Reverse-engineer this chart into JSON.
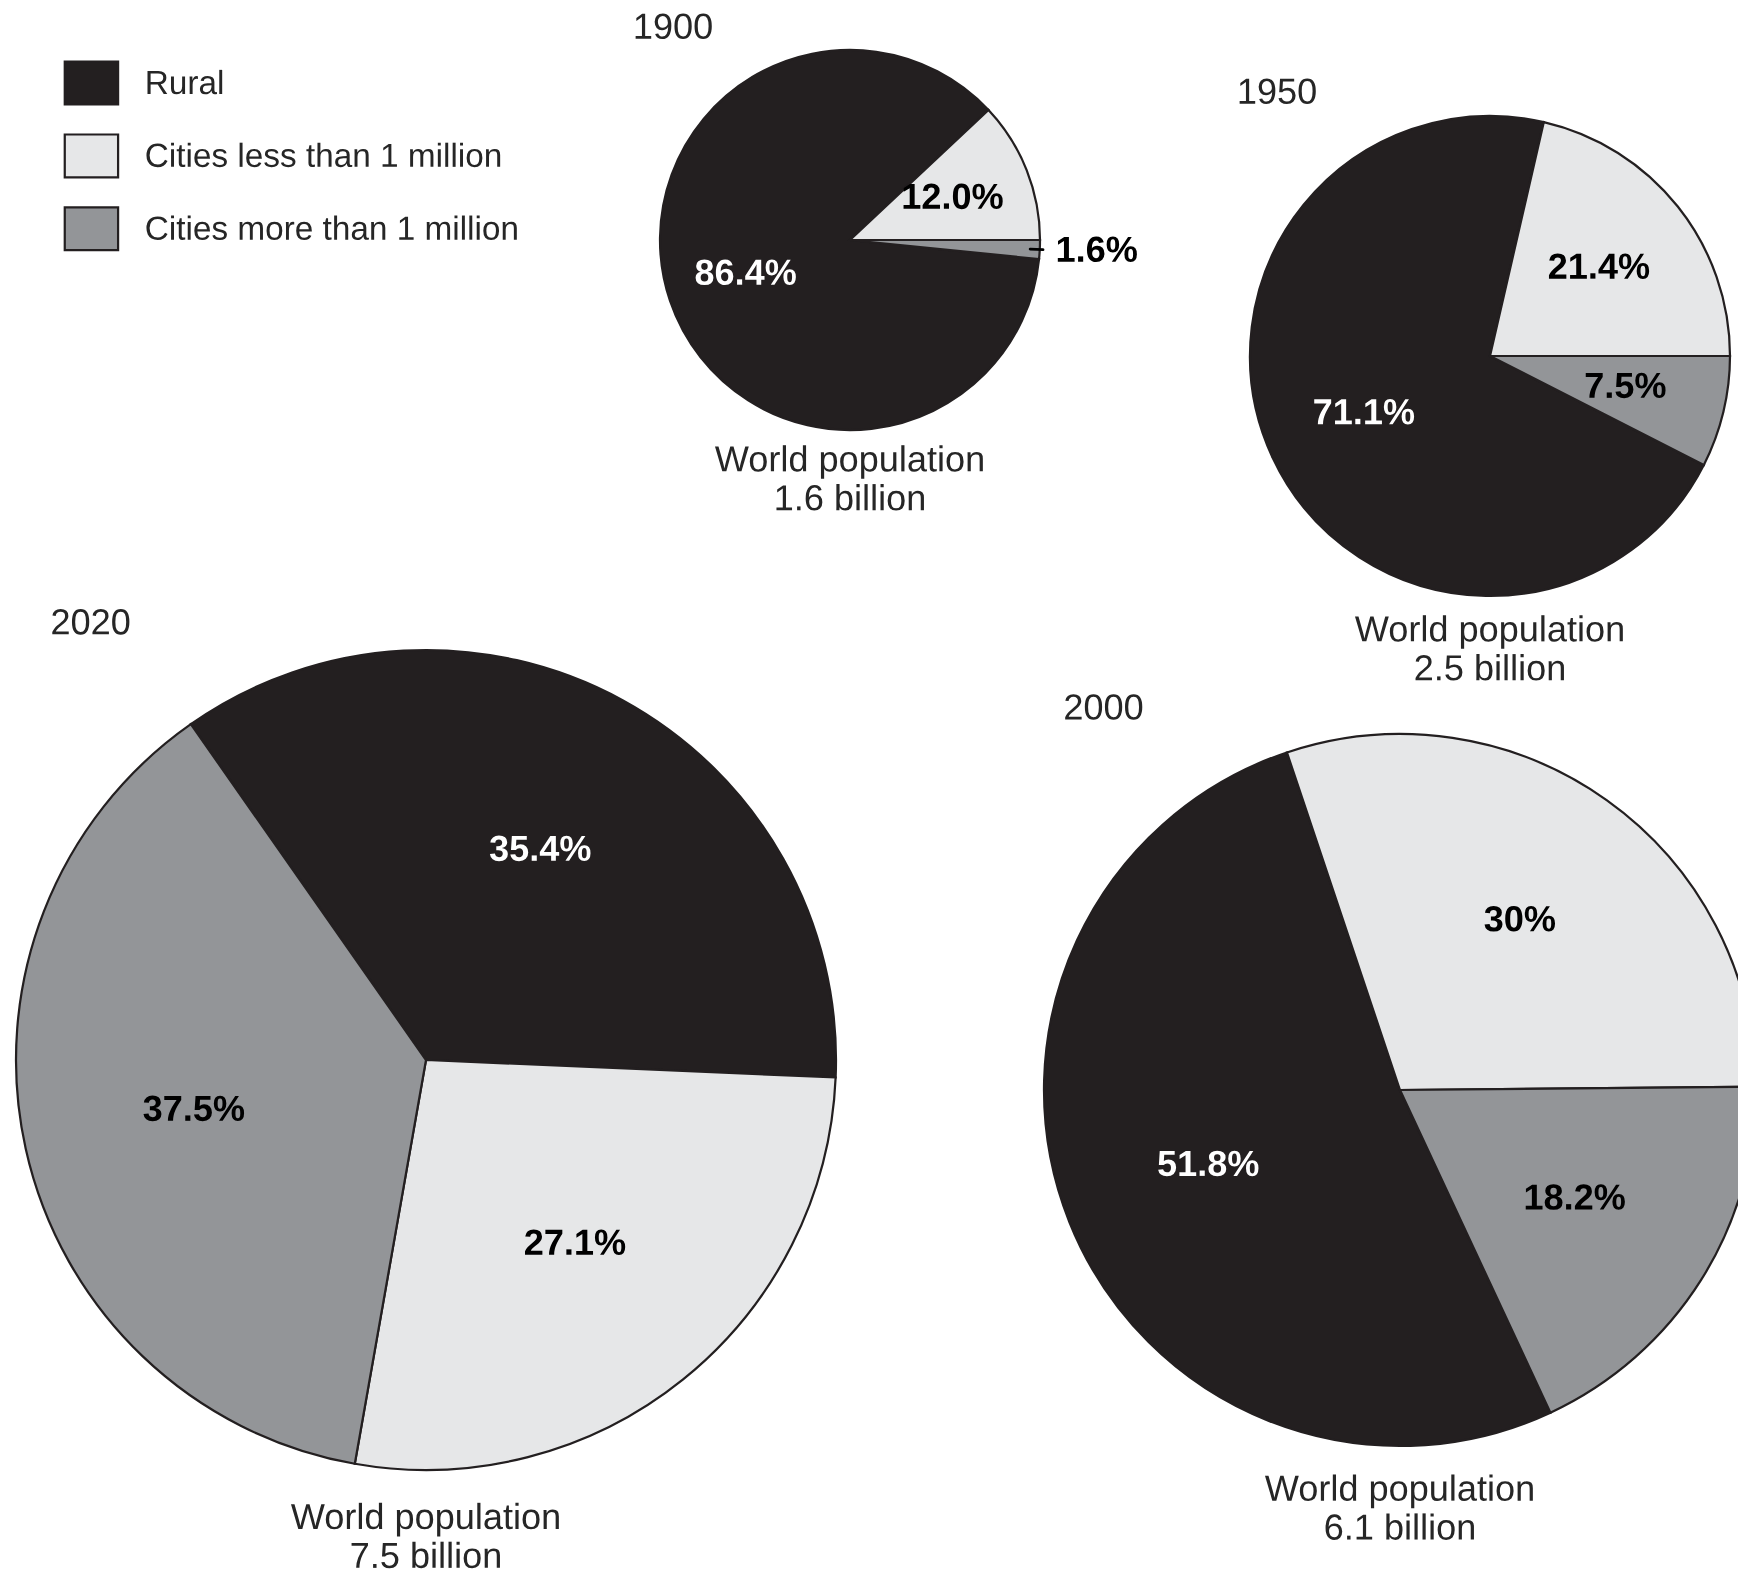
{
  "chart_data": [
    {
      "type": "pie",
      "title": "1900",
      "categories": [
        "Rural",
        "Cities less than 1 million",
        "Cities more than 1 million"
      ],
      "values": [
        86.4,
        12.0,
        1.6
      ],
      "value_labels": [
        "86.4%",
        "12.0%",
        "1.6%"
      ],
      "colors": [
        "#231f20",
        "#e6e7e8",
        "#939598"
      ],
      "legend": "left",
      "annotations": [
        "World population\n1.6 billion"
      ]
    },
    {
      "type": "pie",
      "title": "1950",
      "categories": [
        null,
        null,
        null
      ],
      "values": [
        71.1,
        21.4,
        7.5
      ],
      "value_labels": [
        "71.1%",
        "21.4%",
        "7.5%"
      ],
      "colors": [
        "#231f20",
        "#e6e7e8",
        "#939598"
      ],
      "annotations": [
        "World population\n2.5 billion"
      ]
    },
    {
      "type": "pie",
      "title": "2020",
      "categories": [
        null,
        null,
        null
      ],
      "values": [
        35.4,
        27.1,
        37.5
      ],
      "value_labels": [
        "35.4%",
        "27.1%",
        "37.5%"
      ],
      "colors": [
        "#231f20",
        "#e6e7e8",
        "#939598"
      ],
      "annotations": [
        "World population\n7.5 billion"
      ]
    },
    {
      "type": "pie",
      "title": "2000",
      "categories": [
        null,
        null,
        null
      ],
      "values": [
        51.8,
        30,
        18.2
      ],
      "value_labels": [
        "51.8%",
        "30%",
        "18.2%"
      ],
      "colors": [
        "#231f20",
        "#e6e7e8",
        "#939598"
      ],
      "annotations": [
        "World population\n6.1 billion"
      ]
    }
  ]
}
